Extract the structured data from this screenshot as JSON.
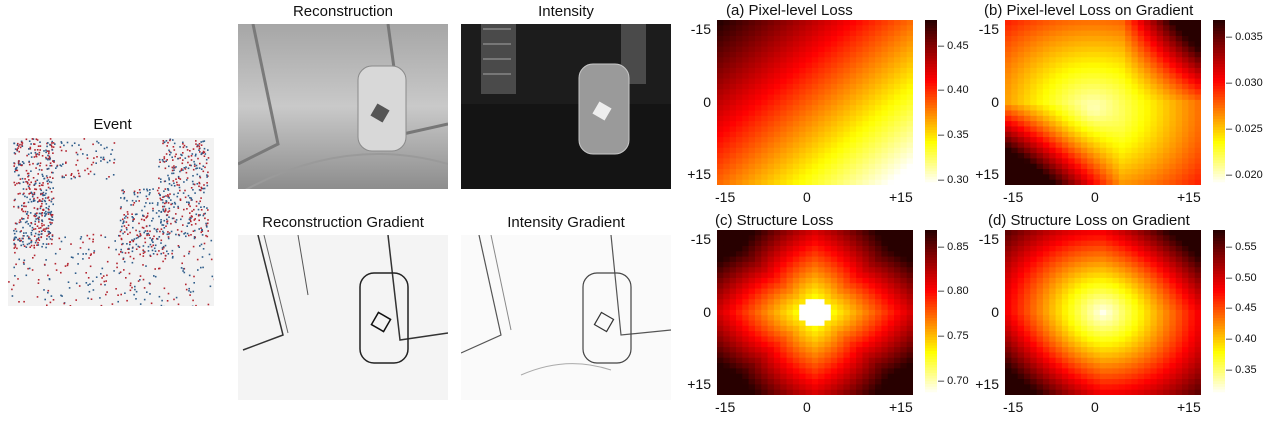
{
  "event_panel": {
    "title": "Event"
  },
  "image_panels": [
    {
      "title": "Reconstruction",
      "style": "gray-bright"
    },
    {
      "title": "Intensity",
      "style": "dark"
    },
    {
      "title": "Reconstruction Gradient",
      "style": "edge-dense"
    },
    {
      "title": "Intensity Gradient",
      "style": "edge-light"
    }
  ],
  "chart_data": [
    {
      "type": "heatmap",
      "title": "(a) Pixel-level Loss",
      "x_ticks": [
        "-15",
        "0",
        "+15"
      ],
      "y_ticks": [
        "-15",
        "0",
        "+15"
      ],
      "colormap": "hot_r",
      "colorbar_ticks": [
        "0.45",
        "0.40",
        "0.35",
        "0.30"
      ],
      "range": [
        0.295,
        0.48
      ],
      "pattern": "diagonal gradient: high (dark) at top-left, low (light) at bottom-right"
    },
    {
      "type": "heatmap",
      "title": "(b) Pixel-level Loss on Gradient",
      "x_ticks": [
        "-15",
        "0",
        "+15"
      ],
      "y_ticks": [
        "-15",
        "0",
        "+15"
      ],
      "colormap": "hot_r",
      "colorbar_ticks": [
        "0.035",
        "0.030",
        "0.025",
        "0.020"
      ],
      "range": [
        0.019,
        0.037
      ],
      "pattern": "low (light) basin near center-left and bottom, high (dark) at top-right"
    },
    {
      "type": "heatmap",
      "title": "(c) Structure Loss",
      "x_ticks": [
        "-15",
        "0",
        "+15"
      ],
      "y_ticks": [
        "-15",
        "0",
        "+15"
      ],
      "colormap": "hot_r",
      "colorbar_ticks": [
        "0.85",
        "0.80",
        "0.75",
        "0.70"
      ],
      "range": [
        0.685,
        0.87
      ],
      "pattern": "sharp minimum (light) at center (0,0) with light cross, high (dark) corners"
    },
    {
      "type": "heatmap",
      "title": "(d) Structure Loss on Gradient",
      "x_ticks": [
        "-15",
        "0",
        "+15"
      ],
      "y_ticks": [
        "-15",
        "0",
        "+15"
      ],
      "colormap": "hot_r",
      "colorbar_ticks": [
        "0.55",
        "0.50",
        "0.45",
        "0.40",
        "0.35"
      ],
      "range": [
        0.31,
        0.58
      ],
      "pattern": "minimum (light) at center (0,0), high (dark) toward corners, esp. top-right"
    }
  ]
}
